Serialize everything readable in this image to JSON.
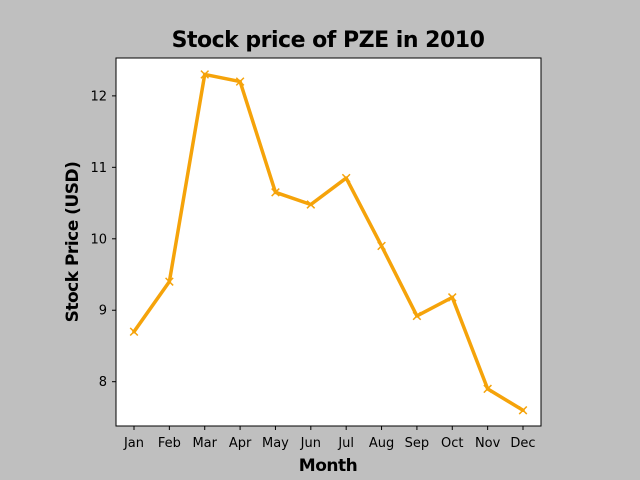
{
  "chart_data": {
    "type": "line",
    "title": "Stock price of PZE in 2010",
    "xlabel": "Month",
    "ylabel": "Stock Price (USD)",
    "categories": [
      "Jan",
      "Feb",
      "Mar",
      "Apr",
      "May",
      "Jun",
      "Jul",
      "Aug",
      "Sep",
      "Oct",
      "Nov",
      "Dec"
    ],
    "series": [
      {
        "values": [
          8.7,
          9.4,
          12.3,
          12.2,
          10.65,
          10.48,
          10.85,
          9.9,
          8.92,
          9.18,
          7.9,
          7.6
        ],
        "color": "#f5a30a",
        "marker": "x"
      }
    ],
    "ylim": [
      7.38,
      12.53
    ],
    "yticks": [
      8,
      9,
      10,
      11,
      12
    ],
    "grid": false,
    "legend": "none"
  },
  "colors": {
    "figure_background": "#bfbfbf",
    "plot_background": "#ffffff",
    "line": "#f5a30a"
  }
}
